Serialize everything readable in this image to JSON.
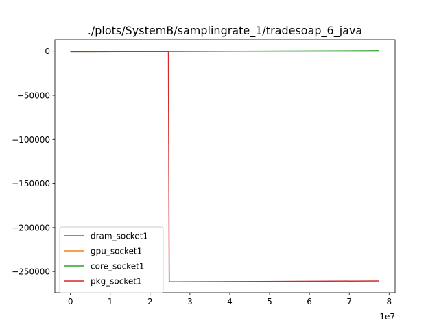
{
  "chart_data": {
    "type": "line",
    "title": "./plots/SystemB/samplingrate_1/tradesoap_6_java",
    "xlabel": "",
    "ylabel": "",
    "x_offset_label": "1e7",
    "xlim": [
      -0.39,
      8.15
    ],
    "ylim": [
      -274000,
      13000
    ],
    "x_ticks": [
      0,
      1,
      2,
      3,
      4,
      5,
      6,
      7,
      8
    ],
    "x_tick_labels": [
      "0",
      "1",
      "2",
      "3",
      "4",
      "5",
      "6",
      "7",
      "8"
    ],
    "y_ticks": [
      0,
      -50000,
      -100000,
      -150000,
      -200000,
      -250000
    ],
    "y_tick_labels": [
      "0",
      "−50000",
      "−100000",
      "−150000",
      "−200000",
      "−250000"
    ],
    "grid": false,
    "legend_position": "lower-left",
    "series": [
      {
        "name": "dram_socket1",
        "color": "#1f77b4",
        "x": [
          0,
          2.45,
          2.5,
          7.75
        ],
        "y": [
          0,
          0,
          0,
          0
        ]
      },
      {
        "name": "gpu_socket1",
        "color": "#ff7f0e",
        "x": [
          0,
          2.45,
          2.5,
          7.75
        ],
        "y": [
          0,
          0,
          0,
          0
        ]
      },
      {
        "name": "core_socket1",
        "color": "#2ca02c",
        "x": [
          0,
          2.45,
          2.5,
          7.75
        ],
        "y": [
          -500,
          -300,
          -300,
          600
        ]
      },
      {
        "name": "pkg_socket1",
        "color": "#d62728",
        "x": [
          0,
          2.46,
          2.48,
          7.75
        ],
        "y": [
          -500,
          -200,
          -261800,
          -260800
        ]
      }
    ]
  }
}
